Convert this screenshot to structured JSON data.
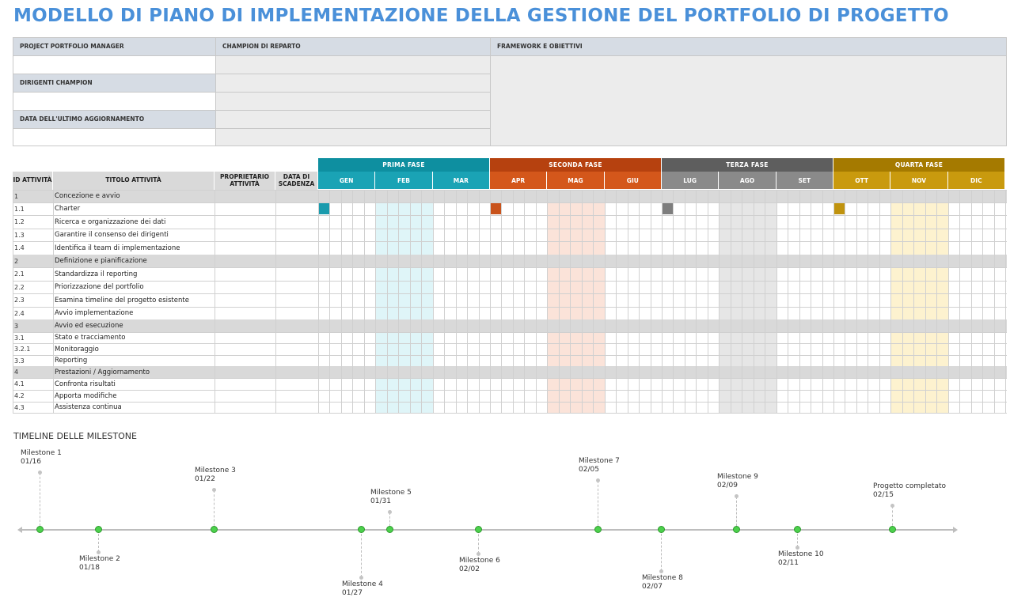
{
  "title": "MODELLO DI PIANO DI IMPLEMENTAZIONE DELLA GESTIONE DEL PORTFOLIO DI PROGETTO",
  "info": {
    "project_portfolio_manager": "PROJECT PORTFOLIO MANAGER",
    "champion_di_reparto": "CHAMPION DI REPARTO",
    "framework_e_obiettivi": "FRAMEWORK E OBIETTIVI",
    "dirigenti_champion": "DIRIGENTI CHAMPION",
    "data_ultimo_aggiornamento": "DATA DELL'ULTIMO AGGIORNAMENTO"
  },
  "gantt": {
    "headers": {
      "id": "ID ATTIVITÀ",
      "titolo": "TITOLO ATTIVITÀ",
      "proprietario": "PROPRIETARIO ATTIVITÀ",
      "scadenza": "DATA DI SCADENZA"
    },
    "phases": [
      {
        "name": "PRIMA FASE",
        "color": "#0e8fa0",
        "months": [
          "GEN",
          "FEB",
          "MAR"
        ],
        "month_color": "#1aa3b5",
        "hi_color": "#dff5f8",
        "marker_color": "#1a9bad"
      },
      {
        "name": "SECONDA FASE",
        "color": "#b6410f",
        "months": [
          "APR",
          "MAG",
          "GIU"
        ],
        "month_color": "#d4571b",
        "hi_color": "#fbe3d9",
        "marker_color": "#c9531c"
      },
      {
        "name": "TERZA FASE",
        "color": "#5e5e5e",
        "months": [
          "LUG",
          "AGO",
          "SET"
        ],
        "month_color": "#8a8a8a",
        "hi_color": "#e6e6e6",
        "marker_color": "#7d7d7d"
      },
      {
        "name": "QUARTA FASE",
        "color": "#a57a00",
        "months": [
          "OTT",
          "NOV",
          "DIC"
        ],
        "month_color": "#c99a0e",
        "hi_color": "#fdf2cf",
        "marker_color": "#c0930e"
      }
    ],
    "rows": [
      {
        "id": "1",
        "title": "Concezione e avvio",
        "section": true
      },
      {
        "id": "1.1",
        "title": "Charter",
        "section": false,
        "markers": true
      },
      {
        "id": "1.2",
        "title": "Ricerca e organizzazione dei dati",
        "section": false
      },
      {
        "id": "1.3",
        "title": "Garantire il consenso dei dirigenti",
        "section": false
      },
      {
        "id": "1.4",
        "title": "Identifica il team di implementazione",
        "section": false
      },
      {
        "id": "2",
        "title": "Definizione e pianificazione",
        "section": true
      },
      {
        "id": "2.1",
        "title": "Standardizza il reporting",
        "section": false
      },
      {
        "id": "2.2",
        "title": "Priorizzazione del portfolio",
        "section": false
      },
      {
        "id": "2.3",
        "title": "Esamina timeline del progetto esistente",
        "section": false
      },
      {
        "id": "2.4",
        "title": "Avvio implementazione",
        "section": false
      },
      {
        "id": "3",
        "title": "Avvio ed esecuzione",
        "section": true
      },
      {
        "id": "3.1",
        "title": "Stato e tracciamento",
        "section": false
      },
      {
        "id": "3.2.1",
        "title": "Monitoraggio",
        "section": false
      },
      {
        "id": "3.3",
        "title": "Reporting",
        "section": false
      },
      {
        "id": "4",
        "title": "Prestazioni / Aggiornamento",
        "section": true
      },
      {
        "id": "4.1",
        "title": "Confronta risultati",
        "section": false
      },
      {
        "id": "4.2",
        "title": "Apporta modifiche",
        "section": false
      },
      {
        "id": "4.3",
        "title": "Assistenza continua",
        "section": false
      }
    ]
  },
  "timeline": {
    "title": "TIMELINE DELLE MILESTONE",
    "milestones": [
      {
        "name": "Milestone 1",
        "date": "01/16",
        "side": "up"
      },
      {
        "name": "Milestone 2",
        "date": "01/18",
        "side": "down"
      },
      {
        "name": "Milestone 3",
        "date": "01/22",
        "side": "up"
      },
      {
        "name": "Milestone 4",
        "date": "01/27",
        "side": "down"
      },
      {
        "name": "Milestone 5",
        "date": "01/31",
        "side": "up"
      },
      {
        "name": "Milestone 6",
        "date": "02/02",
        "side": "down"
      },
      {
        "name": "Milestone 7",
        "date": "02/05",
        "side": "up"
      },
      {
        "name": "Milestone 8",
        "date": "02/07",
        "side": "down"
      },
      {
        "name": "Milestone 9",
        "date": "02/09",
        "side": "up"
      },
      {
        "name": "Milestone 10",
        "date": "02/11",
        "side": "down"
      },
      {
        "name": "Progetto completato",
        "date": "02/15",
        "side": "up"
      }
    ]
  }
}
